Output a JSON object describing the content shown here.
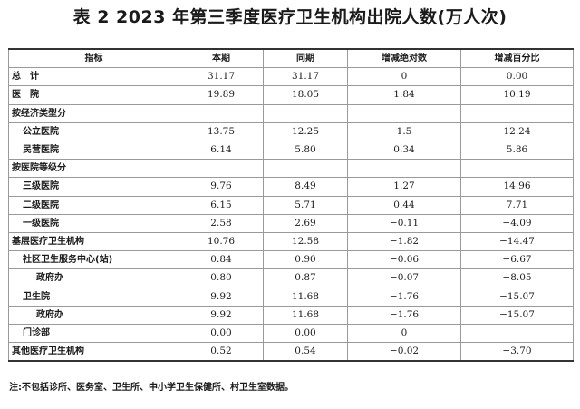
{
  "title": "表 2 2023 年第三季度医疗卫生机构出院人数(万人次)",
  "headers": [
    "指标",
    "本期",
    "同期",
    "增减绝对数",
    "增减百分比"
  ],
  "rows": [
    {
      "label": "总　计",
      "indent": 0,
      "cur": "31.17",
      "prev": "31.17",
      "abs": "0",
      "pct": "0.00"
    },
    {
      "label": "医　院",
      "indent": 0,
      "cur": "19.89",
      "prev": "18.05",
      "abs": "1.84",
      "pct": "10.19"
    },
    {
      "label": "按经济类型分",
      "indent": 0,
      "cur": "",
      "prev": "",
      "abs": "",
      "pct": ""
    },
    {
      "label": "公立医院",
      "indent": 1,
      "cur": "13.75",
      "prev": "12.25",
      "abs": "1.5",
      "pct": "12.24"
    },
    {
      "label": "民营医院",
      "indent": 1,
      "cur": "6.14",
      "prev": "5.80",
      "abs": "0.34",
      "pct": "5.86"
    },
    {
      "label": "按医院等级分",
      "indent": 0,
      "cur": "",
      "prev": "",
      "abs": "",
      "pct": ""
    },
    {
      "label": "三级医院",
      "indent": 1,
      "cur": "9.76",
      "prev": "8.49",
      "abs": "1.27",
      "pct": "14.96"
    },
    {
      "label": "二级医院",
      "indent": 1,
      "cur": "6.15",
      "prev": "5.71",
      "abs": "0.44",
      "pct": "7.71"
    },
    {
      "label": "一级医院",
      "indent": 1,
      "cur": "2.58",
      "prev": "2.69",
      "abs": "−0.11",
      "pct": "−4.09"
    },
    {
      "label": "基层医疗卫生机构",
      "indent": 0,
      "cur": "10.76",
      "prev": "12.58",
      "abs": "−1.82",
      "pct": "−14.47"
    },
    {
      "label": "社区卫生服务中心(站)",
      "indent": 1,
      "cur": "0.84",
      "prev": "0.90",
      "abs": "−0.06",
      "pct": "−6.67"
    },
    {
      "label": "政府办",
      "indent": 2,
      "cur": "0.80",
      "prev": "0.87",
      "abs": "−0.07",
      "pct": "−8.05"
    },
    {
      "label": "卫生院",
      "indent": 1,
      "cur": "9.92",
      "prev": "11.68",
      "abs": "−1.76",
      "pct": "−15.07"
    },
    {
      "label": "政府办",
      "indent": 2,
      "cur": "9.92",
      "prev": "11.68",
      "abs": "−1.76",
      "pct": "−15.07"
    },
    {
      "label": "门诊部",
      "indent": 1,
      "cur": "0.00",
      "prev": "0.00",
      "abs": "0",
      "pct": ""
    },
    {
      "label": "其他医疗卫生机构",
      "indent": 0,
      "cur": "0.52",
      "prev": "0.54",
      "abs": "−0.02",
      "pct": "−3.70"
    }
  ],
  "note": "注:不包括诊所、医务室、卫生所、中小学卫生保健所、村卫生室数据。"
}
